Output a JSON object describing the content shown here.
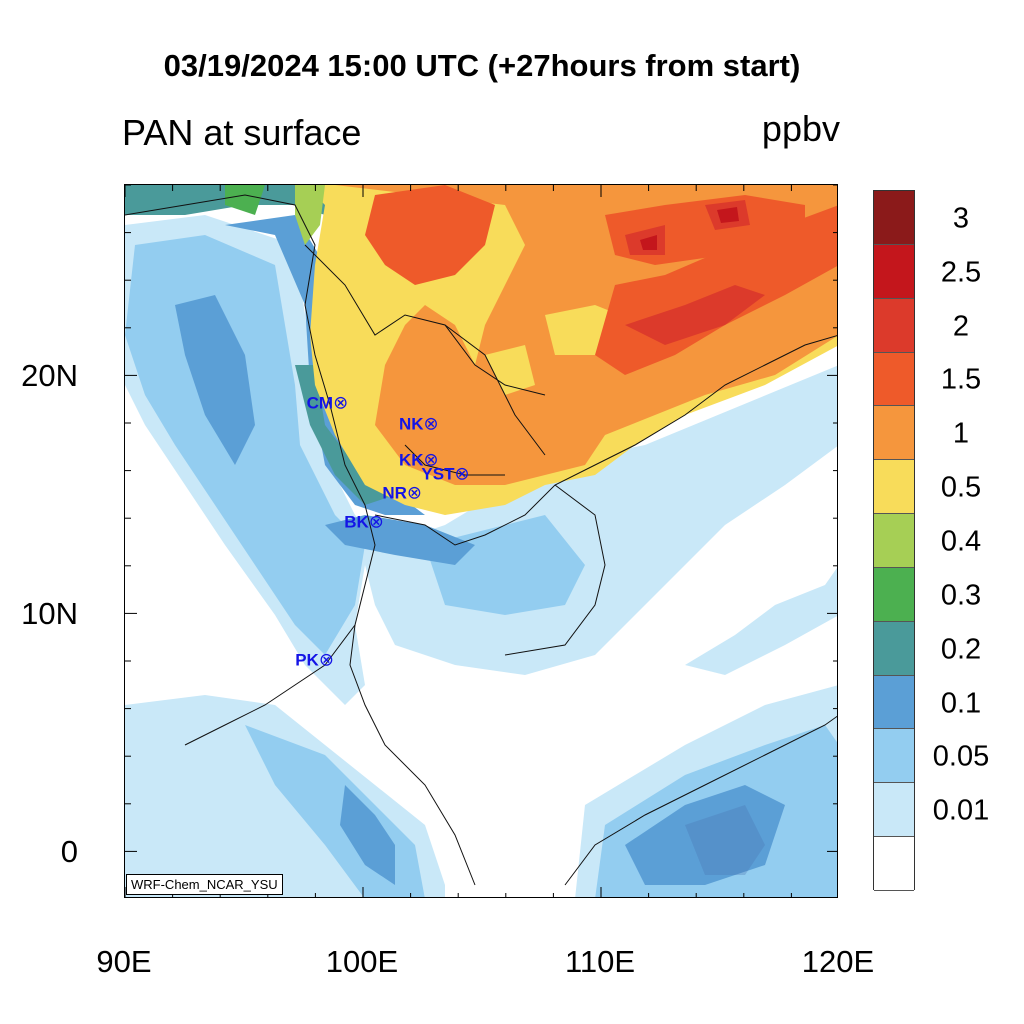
{
  "title": "03/19/2024 15:00 UTC (+27hours from start)",
  "subtitle": "PAN at surface",
  "units": "ppbv",
  "credit": "WRF-Chem_NCAR_YSU",
  "x_ticks": [
    "90E",
    "100E",
    "110E",
    "120E"
  ],
  "y_ticks": [
    "20N",
    "10N",
    "0"
  ],
  "map": {
    "lon_range": [
      90,
      120
    ],
    "lat_range": [
      -2,
      28
    ],
    "variable": "PAN",
    "level": "surface"
  },
  "colorbar": {
    "levels": [
      "3",
      "2.5",
      "2",
      "1.5",
      "1",
      "0.5",
      "0.4",
      "0.3",
      "0.2",
      "0.1",
      "0.05",
      "0.01"
    ],
    "colors": [
      "#8b1a1a",
      "#c4161c",
      "#dc3a2b",
      "#ee5a2a",
      "#f5963d",
      "#f8dc5a",
      "#a6cf55",
      "#4cb050",
      "#4a9a9a",
      "#5b9fd6",
      "#93cdf0",
      "#c9e8f8",
      "#ffffff"
    ]
  },
  "stations": [
    {
      "label": "CM",
      "lon": 99.0,
      "lat": 18.8
    },
    {
      "label": "NK",
      "lon": 102.8,
      "lat": 17.9
    },
    {
      "label": "KK",
      "lon": 102.8,
      "lat": 16.4
    },
    {
      "label": "YST",
      "lon": 104.1,
      "lat": 15.8
    },
    {
      "label": "NR",
      "lon": 102.1,
      "lat": 15.0
    },
    {
      "label": "BK",
      "lon": 100.5,
      "lat": 13.8
    },
    {
      "label": "PK",
      "lon": 98.4,
      "lat": 8.0
    }
  ]
}
